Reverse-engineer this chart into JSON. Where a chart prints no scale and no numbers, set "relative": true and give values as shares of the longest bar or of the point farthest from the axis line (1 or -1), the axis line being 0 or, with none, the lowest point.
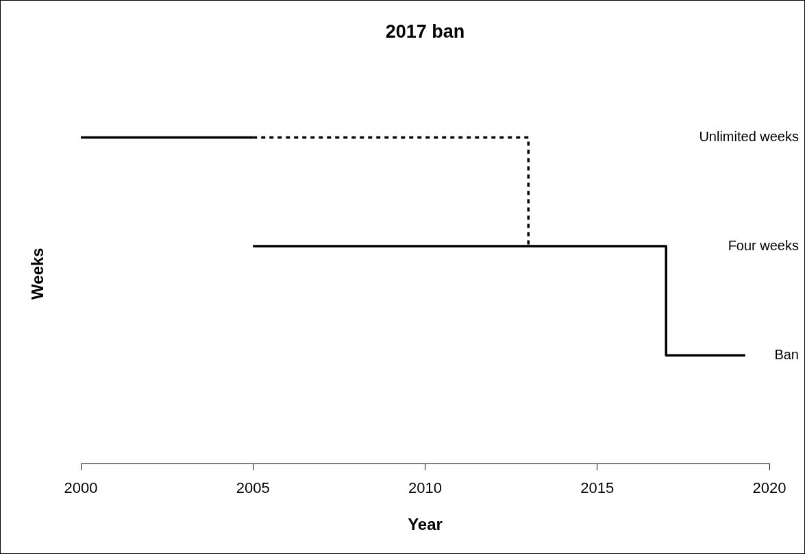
{
  "chart_data": {
    "type": "step",
    "title": "2017 ban",
    "xlabel": "Year",
    "ylabel": "Weeks",
    "relative": true,
    "xlim": [
      2000,
      2020
    ],
    "xticks": [
      2000,
      2005,
      2010,
      2015,
      2020
    ],
    "grid": false,
    "legend": false,
    "marker": "none",
    "series": [
      {
        "color": "#000000",
        "x": [
          2000,
          2005
        ],
        "values": [
          1,
          1
        ]
      },
      {
        "color": "#000000",
        "line_style": "dotted",
        "x": [
          2005,
          2013,
          2013
        ],
        "values": [
          1,
          1,
          0.667
        ]
      },
      {
        "color": "#000000",
        "x": [
          2005,
          2017,
          2019.3
        ],
        "values": [
          0.667,
          0.667,
          0.333
        ]
      }
    ],
    "annotations": [
      "Unlimited weeks",
      "Four weeks",
      "Ban"
    ]
  }
}
